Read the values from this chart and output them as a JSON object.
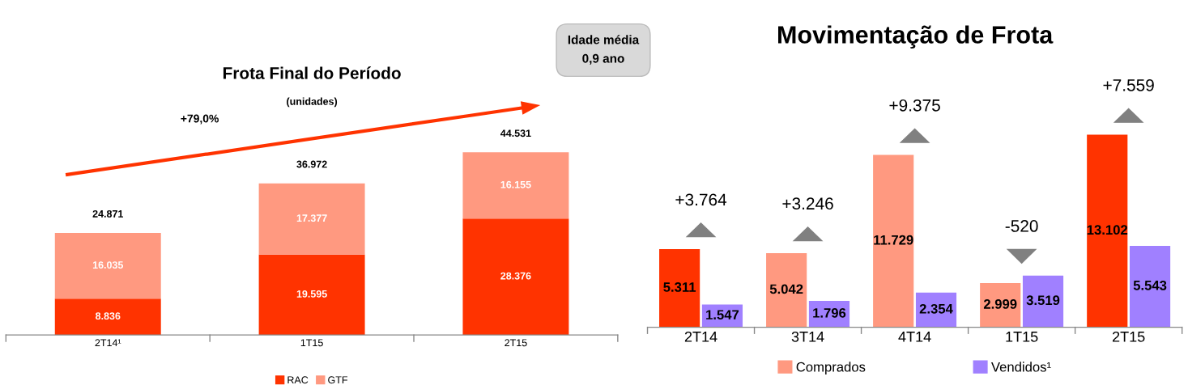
{
  "chart_data": [
    {
      "type": "bar",
      "title": "Frota Final do Período",
      "subtitle": "(unidades)",
      "categories": [
        "2T14¹",
        "1T15",
        "2T15"
      ],
      "stacked": true,
      "legend": "bottom",
      "series": [
        {
          "name": "RAC",
          "color": "#ff3300",
          "values": [
            8836,
            19595,
            28376
          ],
          "value_labels": [
            "8.836",
            "19.595",
            "28.376"
          ]
        },
        {
          "name": "GTF",
          "color": "#ff9980",
          "values": [
            16035,
            17377,
            16155
          ],
          "value_labels": [
            "16.035",
            "17.377",
            "16.155"
          ]
        }
      ],
      "totals": [
        "24.871",
        "36.972",
        "44.531"
      ],
      "annotations": [
        "+79,0%",
        "Idade média\n0,9 ano"
      ]
    },
    {
      "type": "bar",
      "title": "Movimentação de Frota",
      "categories": [
        "2T14",
        "3T14",
        "4T14",
        "1T15",
        "2T15"
      ],
      "legend": "bottom",
      "series": [
        {
          "name": "Comprados",
          "color": "#ff9980",
          "colors": [
            "#ff3300",
            "#ff9980",
            "#ff9980",
            "#ff9980",
            "#ff3300"
          ],
          "values": [
            5311,
            5042,
            11729,
            2999,
            13102
          ],
          "value_labels": [
            "5.311",
            "5.042",
            "11.729",
            "2.999",
            "13.102"
          ]
        },
        {
          "name": "Vendidos¹",
          "color": "#a080ff",
          "values": [
            1547,
            1796,
            2354,
            3519,
            5543
          ],
          "value_labels": [
            "1.547",
            "1.796",
            "2.354",
            "3.519",
            "5.543"
          ]
        }
      ],
      "annotations": [
        "+3.764",
        "+3.246",
        "+9.375",
        "-520",
        "+7.559"
      ]
    }
  ]
}
